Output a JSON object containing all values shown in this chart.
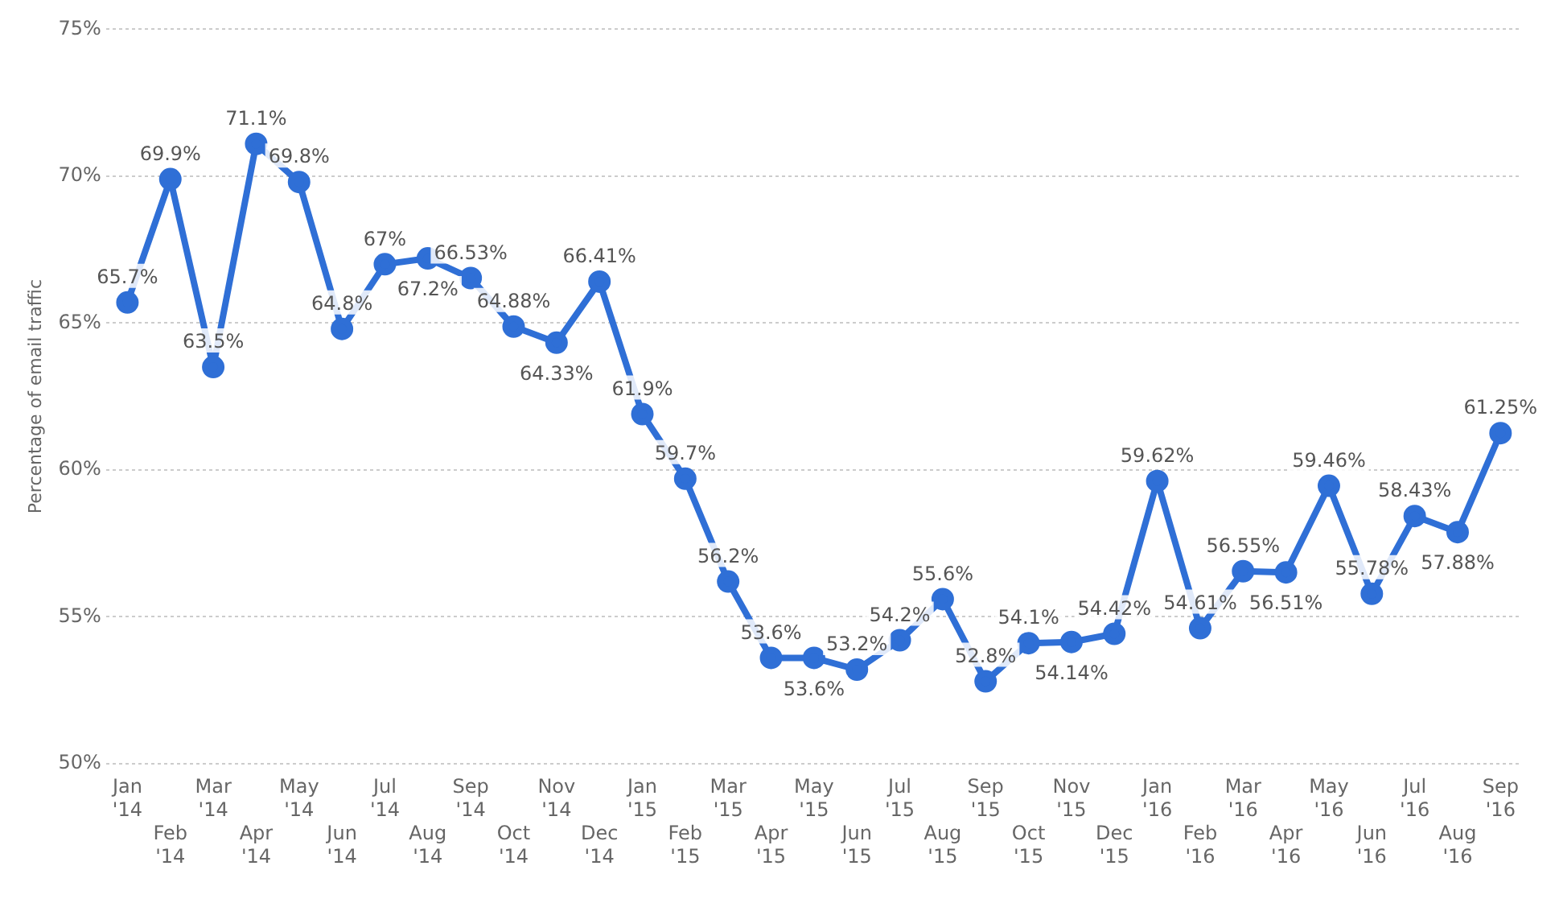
{
  "chart_data": {
    "type": "line",
    "ylabel": "Percentage of email traffic",
    "categories": [
      "Jan '14",
      "Feb '14",
      "Mar '14",
      "Apr '14",
      "May '14",
      "Jun '14",
      "Jul '14",
      "Aug '14",
      "Sep '14",
      "Oct '14",
      "Nov '14",
      "Dec '14",
      "Jan '15",
      "Feb '15",
      "Mar '15",
      "Apr '15",
      "May '15",
      "Jun '15",
      "Jul '15",
      "Aug '15",
      "Sep '15",
      "Oct '15",
      "Nov '15",
      "Dec '15",
      "Jan '16",
      "Feb '16",
      "Mar '16",
      "Apr '16",
      "May '16",
      "Jun '16",
      "Jul '16",
      "Aug '16",
      "Sep '16"
    ],
    "series": [
      {
        "color": "#2f6fd6",
        "values": [
          65.7,
          69.9,
          63.5,
          71.1,
          69.8,
          64.8,
          67,
          67.2,
          66.53,
          64.88,
          64.33,
          66.41,
          61.9,
          59.7,
          56.2,
          53.6,
          53.6,
          53.2,
          54.2,
          55.6,
          52.8,
          54.1,
          54.14,
          54.42,
          59.62,
          54.61,
          56.55,
          56.51,
          59.46,
          55.78,
          58.43,
          57.88,
          61.25
        ],
        "value_labels": [
          "65.7%",
          "69.9%",
          "63.5%",
          "71.1%",
          "69.8%",
          "64.8%",
          "67%",
          "67.2%",
          "66.53%",
          "64.88%",
          "64.33%",
          "66.41%",
          "61.9%",
          "59.7%",
          "56.2%",
          "53.6%",
          "53.6%",
          "53.2%",
          "54.2%",
          "55.6%",
          "52.8%",
          "54.1%",
          "54.14%",
          "54.42%",
          "59.62%",
          "54.61%",
          "56.55%",
          "56.51%",
          "59.46%",
          "55.78%",
          "58.43%",
          "57.88%",
          "61.25%"
        ]
      }
    ],
    "ylim": [
      50,
      75
    ],
    "yticks": [
      {
        "value": 50,
        "label": "50%"
      },
      {
        "value": 55,
        "label": "55%"
      },
      {
        "value": 60,
        "label": "60%"
      },
      {
        "value": 65,
        "label": "65%"
      },
      {
        "value": 70,
        "label": "70%"
      },
      {
        "value": 75,
        "label": "75%"
      }
    ],
    "grid": "y",
    "legend": false,
    "marker": "circle",
    "line_style": "solid"
  }
}
